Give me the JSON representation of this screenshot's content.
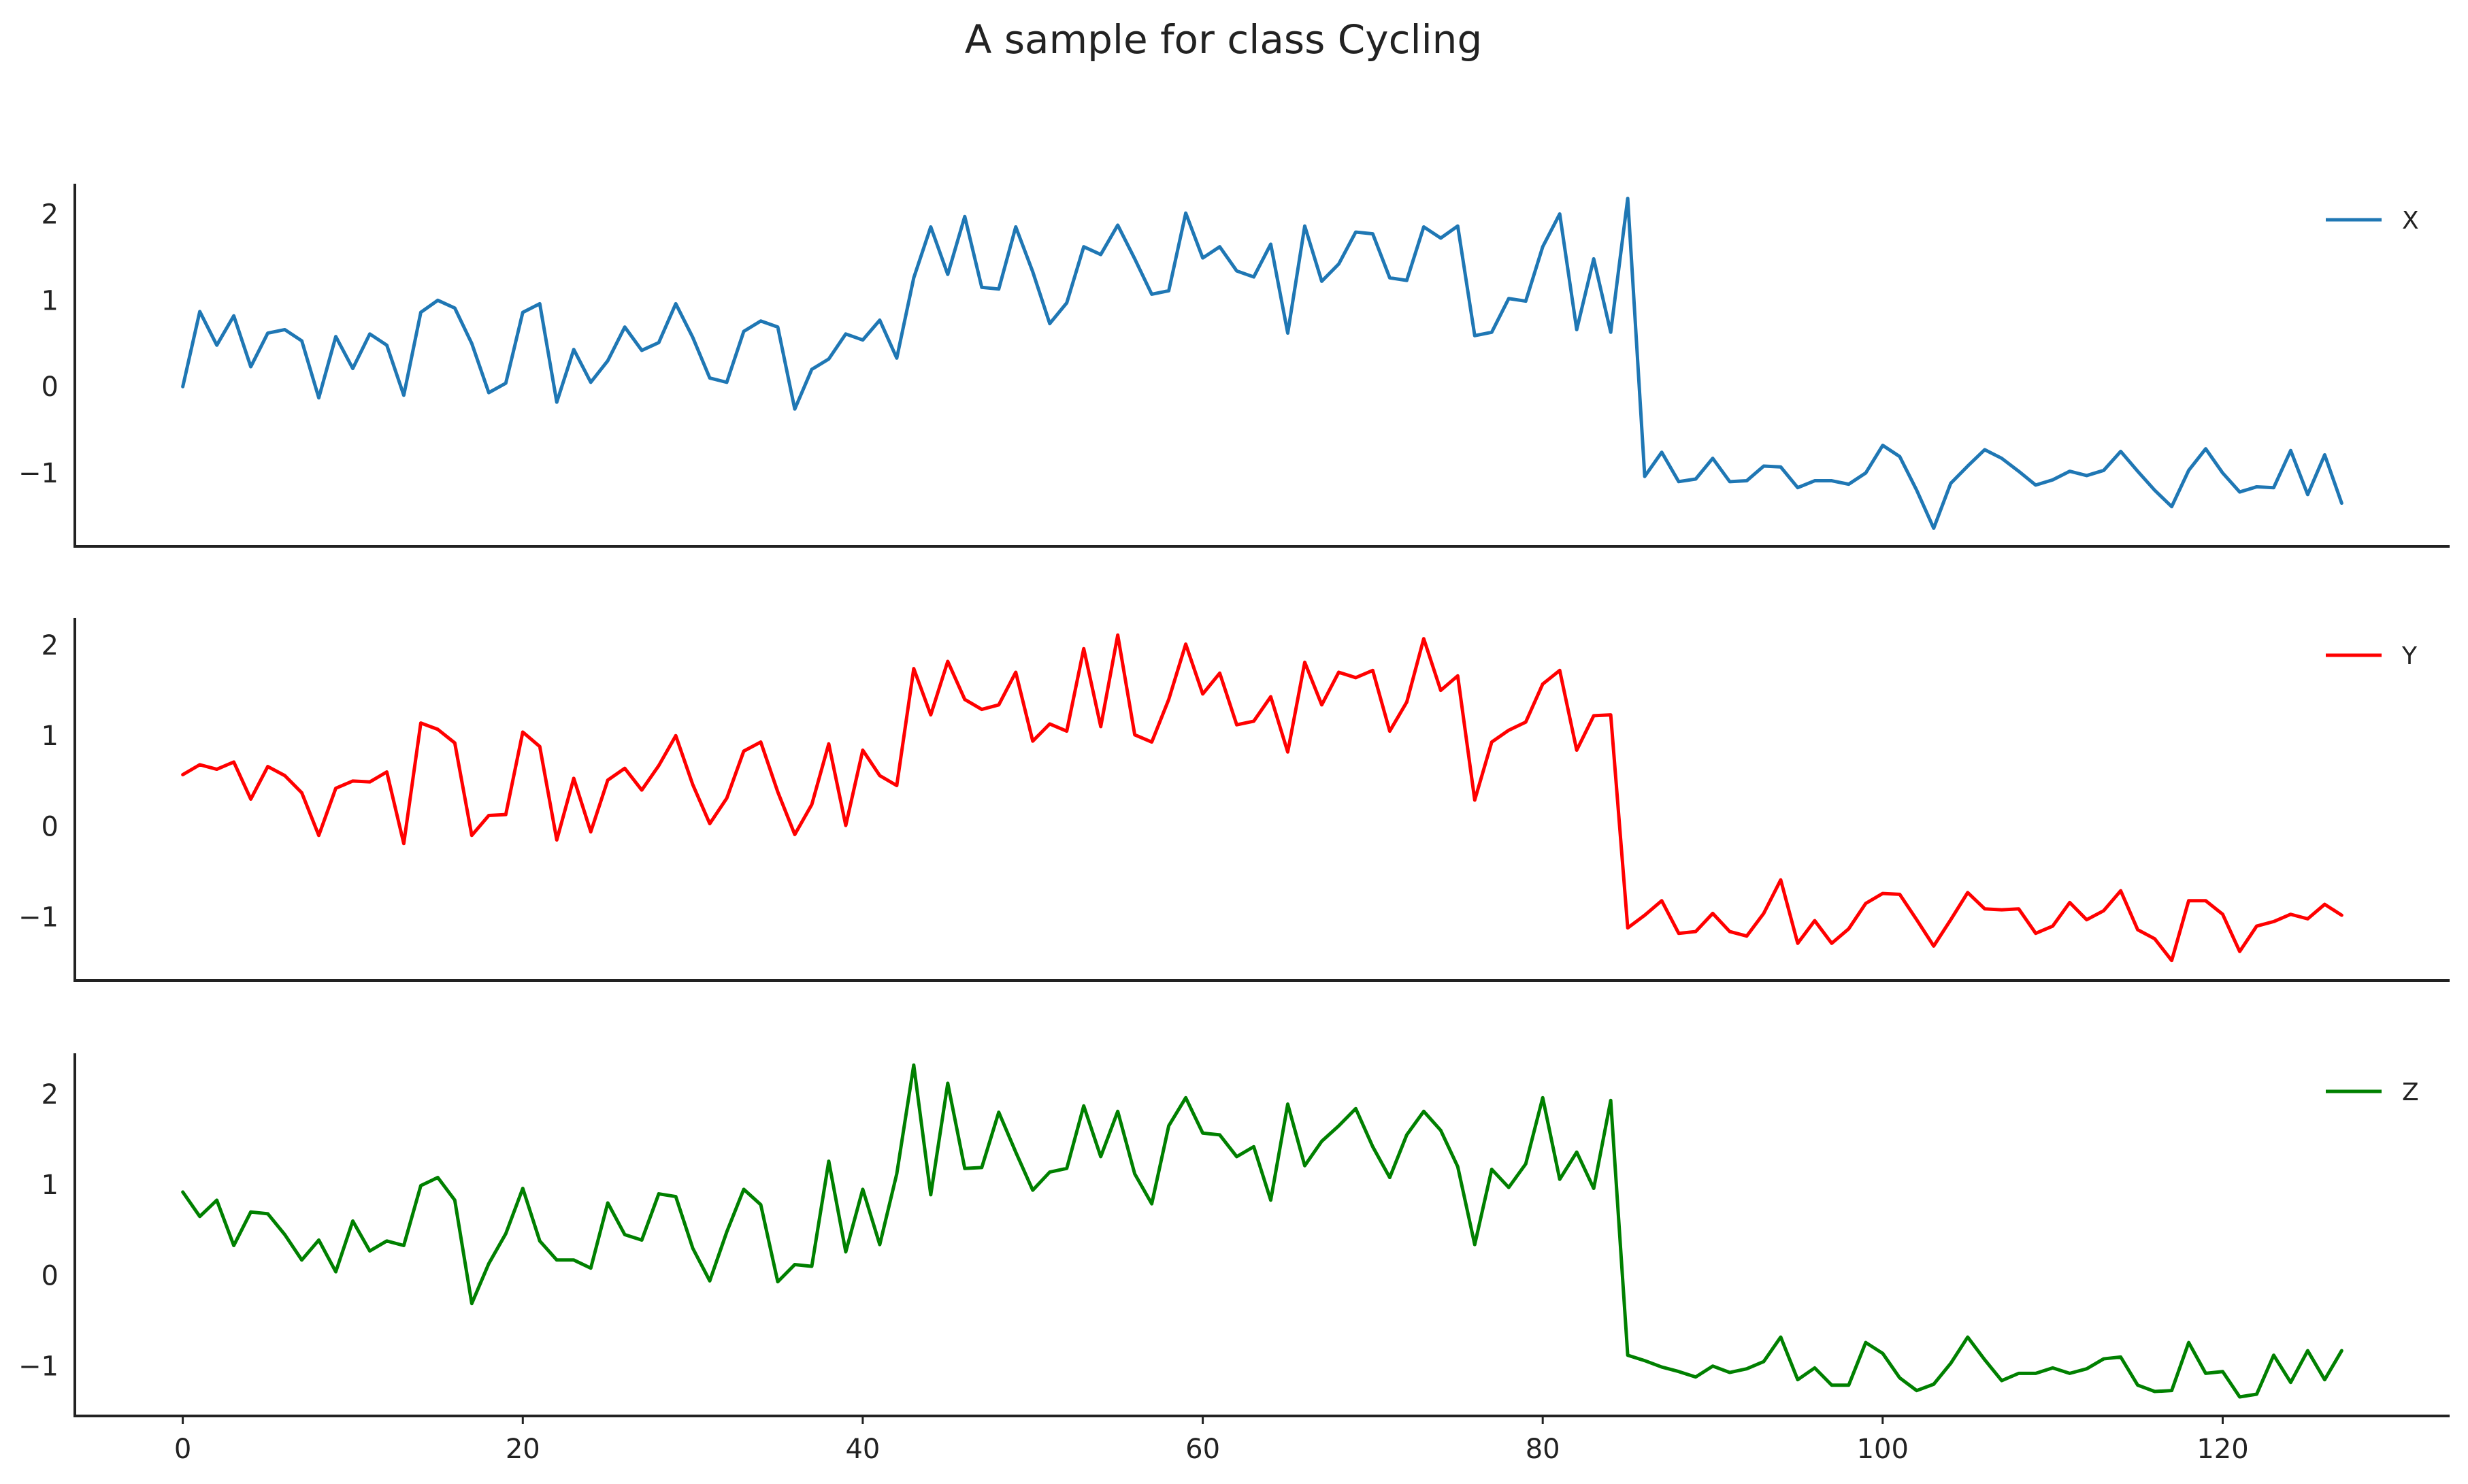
{
  "chart_data": {
    "type": "line",
    "title": "A sample for class Cycling",
    "xlabel": "",
    "xlim": [
      -6.35,
      133.35
    ],
    "xticks": [
      0,
      20,
      40,
      60,
      80,
      100,
      120
    ],
    "grid": false,
    "legend_position": "top-right",
    "panels": [
      {
        "ylabel": "",
        "ylim": [
          -1.85,
          2.35
        ],
        "yticks": [
          -1,
          0,
          1,
          2
        ],
        "series": [
          {
            "name": "X",
            "color": "#1f77b4",
            "values": [
              0.0,
              0.87,
              0.48,
              0.82,
              0.23,
              0.62,
              0.66,
              0.53,
              -0.13,
              0.58,
              0.21,
              0.61,
              0.48,
              -0.1,
              0.86,
              1.0,
              0.91,
              0.5,
              -0.07,
              0.04,
              0.86,
              0.96,
              -0.18,
              0.43,
              0.05,
              0.3,
              0.69,
              0.42,
              0.51,
              0.96,
              0.57,
              0.1,
              0.05,
              0.64,
              0.76,
              0.69,
              -0.26,
              0.2,
              0.32,
              0.61,
              0.54,
              0.77,
              0.33,
              1.26,
              1.85,
              1.3,
              1.97,
              1.15,
              1.13,
              1.85,
              1.33,
              0.73,
              0.97,
              1.62,
              1.53,
              1.87,
              1.48,
              1.07,
              1.11,
              2.01,
              1.49,
              1.62,
              1.34,
              1.27,
              1.65,
              0.62,
              1.86,
              1.22,
              1.42,
              1.79,
              1.77,
              1.26,
              1.23,
              1.85,
              1.72,
              1.86,
              0.59,
              0.63,
              1.02,
              0.99,
              1.62,
              2.0,
              0.66,
              1.48,
              0.63,
              2.18,
              -1.04,
              -0.76,
              -1.1,
              -1.07,
              -0.83,
              -1.1,
              -1.09,
              -0.92,
              -0.93,
              -1.17,
              -1.09,
              -1.09,
              -1.13,
              -1.0,
              -0.68,
              -0.81,
              -1.2,
              -1.64,
              -1.12,
              -0.92,
              -0.73,
              -0.83,
              -0.98,
              -1.14,
              -1.08,
              -0.98,
              -1.03,
              -0.97,
              -0.75,
              -0.98,
              -1.2,
              -1.39,
              -0.97,
              -0.72,
              -1.0,
              -1.22,
              -1.16,
              -1.17,
              -0.74,
              -1.25,
              -0.79,
              -1.35
            ]
          }
        ]
      },
      {
        "ylabel": "",
        "ylim": [
          -1.7,
          2.3
        ],
        "yticks": [
          -1,
          0,
          1,
          2
        ],
        "series": [
          {
            "name": "Y",
            "color": "#ff0000",
            "values": [
              0.57,
              0.68,
              0.63,
              0.71,
              0.3,
              0.66,
              0.56,
              0.37,
              -0.1,
              0.42,
              0.5,
              0.49,
              0.6,
              -0.19,
              1.14,
              1.07,
              0.92,
              -0.1,
              0.12,
              0.13,
              1.04,
              0.88,
              -0.15,
              0.53,
              -0.06,
              0.51,
              0.64,
              0.4,
              0.67,
              1.0,
              0.46,
              0.03,
              0.31,
              0.83,
              0.93,
              0.38,
              -0.09,
              0.24,
              0.91,
              0.01,
              0.84,
              0.56,
              0.45,
              1.74,
              1.23,
              1.82,
              1.4,
              1.29,
              1.34,
              1.7,
              0.94,
              1.13,
              1.05,
              1.96,
              1.1,
              2.11,
              1.01,
              0.93,
              1.4,
              2.01,
              1.46,
              1.69,
              1.12,
              1.16,
              1.43,
              0.82,
              1.81,
              1.34,
              1.7,
              1.64,
              1.72,
              1.05,
              1.37,
              2.07,
              1.5,
              1.66,
              0.29,
              0.93,
              1.06,
              1.15,
              1.57,
              1.72,
              0.84,
              1.22,
              1.23,
              -1.12,
              -0.98,
              -0.82,
              -1.18,
              -1.16,
              -0.96,
              -1.16,
              -1.21,
              -0.96,
              -0.59,
              -1.29,
              -1.04,
              -1.29,
              -1.13,
              -0.85,
              -0.74,
              -0.75,
              -1.03,
              -1.32,
              -1.03,
              -0.73,
              -0.91,
              -0.92,
              -0.91,
              -1.18,
              -1.1,
              -0.84,
              -1.03,
              -0.93,
              -0.71,
              -1.14,
              -1.24,
              -1.48,
              -0.82,
              -0.82,
              -0.97,
              -1.38,
              -1.1,
              -1.05,
              -0.97,
              -1.02,
              -0.86,
              -0.98
            ]
          }
        ]
      },
      {
        "ylabel": "",
        "ylim": [
          -1.55,
          2.45
        ],
        "yticks": [
          -1,
          0,
          1,
          2
        ],
        "series": [
          {
            "name": "Z",
            "color": "#008000",
            "values": [
              0.92,
              0.65,
              0.83,
              0.33,
              0.7,
              0.68,
              0.45,
              0.17,
              0.39,
              0.04,
              0.6,
              0.27,
              0.38,
              0.33,
              0.99,
              1.08,
              0.83,
              -0.31,
              0.13,
              0.46,
              0.96,
              0.38,
              0.17,
              0.17,
              0.08,
              0.8,
              0.45,
              0.39,
              0.9,
              0.87,
              0.3,
              -0.06,
              0.48,
              0.95,
              0.78,
              -0.07,
              0.12,
              0.1,
              1.26,
              0.26,
              0.95,
              0.34,
              1.12,
              2.32,
              0.89,
              2.12,
              1.18,
              1.19,
              1.8,
              1.36,
              0.94,
              1.14,
              1.18,
              1.87,
              1.31,
              1.81,
              1.12,
              0.79,
              1.65,
              1.96,
              1.57,
              1.55,
              1.31,
              1.42,
              0.83,
              1.89,
              1.21,
              1.48,
              1.65,
              1.84,
              1.42,
              1.08,
              1.55,
              1.81,
              1.6,
              1.2,
              0.34,
              1.17,
              0.97,
              1.23,
              1.96,
              1.06,
              1.36,
              0.96,
              1.93,
              -0.88,
              -0.94,
              -1.01,
              -1.06,
              -1.12,
              -1.0,
              -1.07,
              -1.03,
              -0.95,
              -0.68,
              -1.15,
              -1.02,
              -1.21,
              -1.21,
              -0.74,
              -0.86,
              -1.13,
              -1.27,
              -1.2,
              -0.97,
              -0.68,
              -0.93,
              -1.16,
              -1.08,
              -1.08,
              -1.02,
              -1.08,
              -1.03,
              -0.92,
              -0.9,
              -1.21,
              -1.28,
              -1.27,
              -0.74,
              -1.08,
              -1.06,
              -1.34,
              -1.31,
              -0.88,
              -1.18,
              -0.83,
              -1.15,
              -0.83
            ]
          }
        ]
      }
    ]
  }
}
